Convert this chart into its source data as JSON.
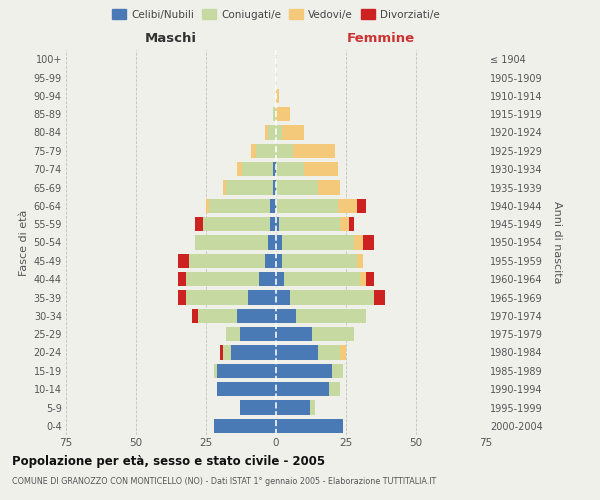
{
  "age_groups": [
    "0-4",
    "5-9",
    "10-14",
    "15-19",
    "20-24",
    "25-29",
    "30-34",
    "35-39",
    "40-44",
    "45-49",
    "50-54",
    "55-59",
    "60-64",
    "65-69",
    "70-74",
    "75-79",
    "80-84",
    "85-89",
    "90-94",
    "95-99",
    "100+"
  ],
  "birth_years": [
    "2000-2004",
    "1995-1999",
    "1990-1994",
    "1985-1989",
    "1980-1984",
    "1975-1979",
    "1970-1974",
    "1965-1969",
    "1960-1964",
    "1955-1959",
    "1950-1954",
    "1945-1949",
    "1940-1944",
    "1935-1939",
    "1930-1934",
    "1925-1929",
    "1920-1924",
    "1915-1919",
    "1910-1914",
    "1905-1909",
    "≤ 1904"
  ],
  "male": {
    "celibi": [
      22,
      13,
      21,
      21,
      16,
      13,
      14,
      10,
      6,
      4,
      3,
      2,
      2,
      1,
      1,
      0,
      0,
      0,
      0,
      0,
      0
    ],
    "coniugati": [
      0,
      0,
      0,
      1,
      3,
      5,
      14,
      22,
      26,
      27,
      26,
      24,
      22,
      17,
      11,
      7,
      3,
      1,
      0,
      0,
      0
    ],
    "vedovi": [
      0,
      0,
      0,
      0,
      0,
      0,
      0,
      0,
      0,
      0,
      0,
      0,
      1,
      1,
      2,
      2,
      1,
      0,
      0,
      0,
      0
    ],
    "divorziati": [
      0,
      0,
      0,
      0,
      1,
      0,
      2,
      3,
      3,
      4,
      0,
      3,
      0,
      0,
      0,
      0,
      0,
      0,
      0,
      0,
      0
    ]
  },
  "female": {
    "nubili": [
      24,
      12,
      19,
      20,
      15,
      13,
      7,
      5,
      3,
      2,
      2,
      1,
      0,
      0,
      0,
      0,
      0,
      0,
      0,
      0,
      0
    ],
    "coniugate": [
      0,
      2,
      4,
      4,
      8,
      15,
      25,
      30,
      27,
      27,
      26,
      22,
      22,
      15,
      10,
      6,
      2,
      0,
      0,
      0,
      0
    ],
    "vedove": [
      0,
      0,
      0,
      0,
      2,
      0,
      0,
      0,
      2,
      2,
      3,
      3,
      7,
      8,
      12,
      15,
      8,
      5,
      1,
      0,
      0
    ],
    "divorziate": [
      0,
      0,
      0,
      0,
      0,
      0,
      0,
      4,
      3,
      0,
      4,
      2,
      3,
      0,
      0,
      0,
      0,
      0,
      0,
      0,
      0
    ]
  },
  "colors": {
    "celibi_nubili": "#4a7ab5",
    "coniugati": "#c5d9a0",
    "vedovi": "#f5c97a",
    "divorziati": "#cc2222"
  },
  "title": "Popolazione per età, sesso e stato civile - 2005",
  "subtitle": "COMUNE DI GRANOZZO CON MONTICELLO (NO) - Dati ISTAT 1° gennaio 2005 - Elaborazione TUTTITALIA.IT",
  "xlabel_left": "Maschi",
  "xlabel_right": "Femmine",
  "ylabel_left": "Fasce di età",
  "ylabel_right": "Anni di nascita",
  "xlim": 75,
  "bg_color": "#f0f0eb",
  "grid_color": "#bbbbbb"
}
